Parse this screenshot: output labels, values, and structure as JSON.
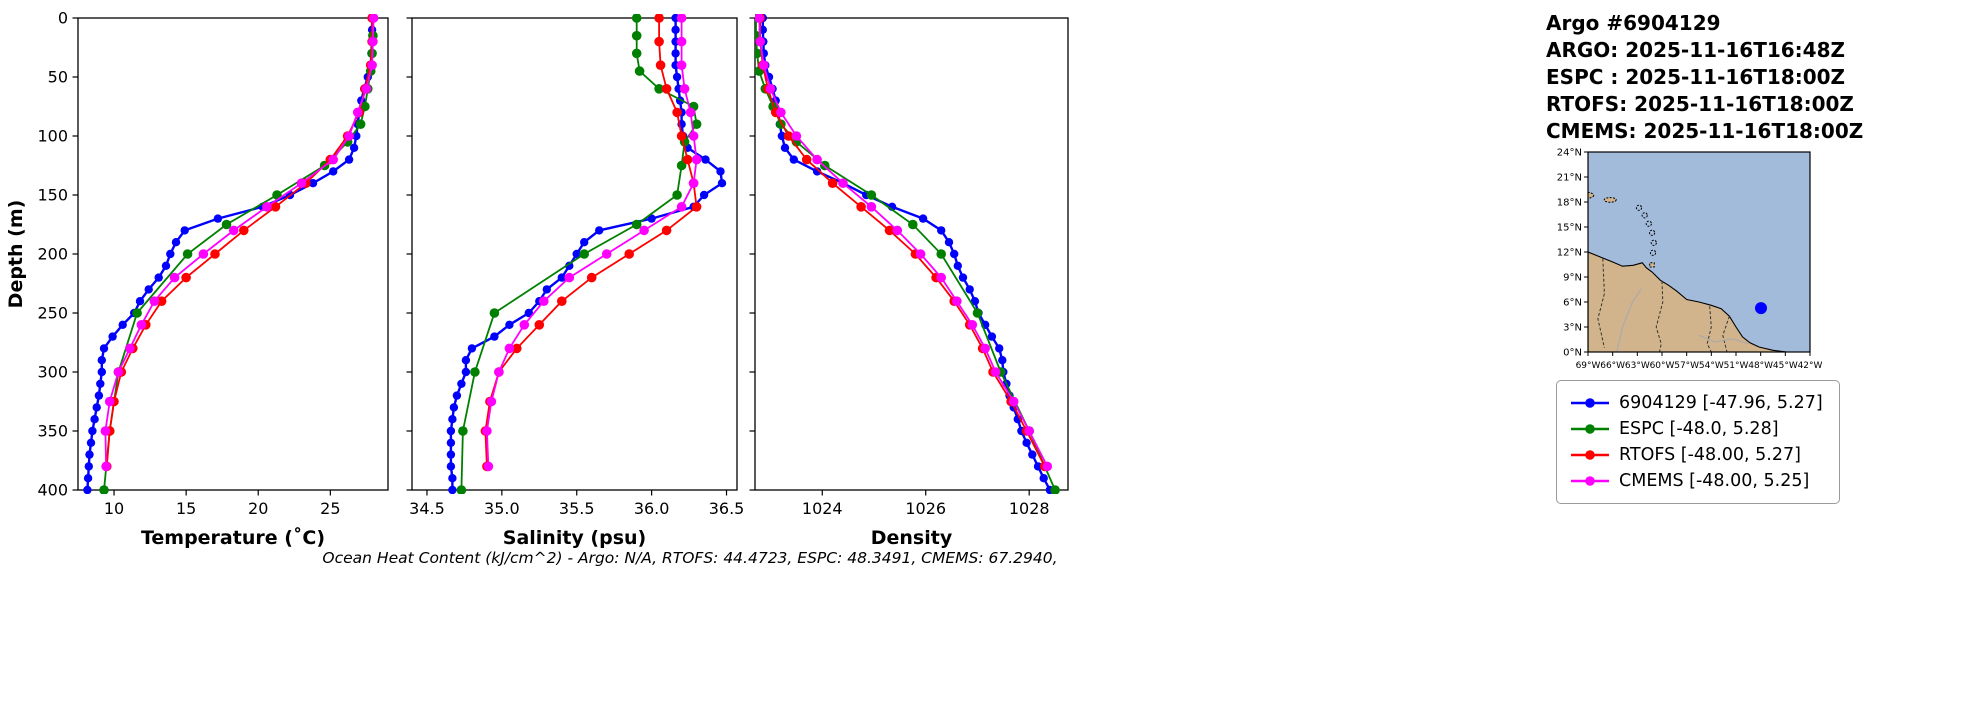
{
  "header": {
    "title": "Argo #6904129",
    "argo_line": "ARGO: 2025-11-16T16:48Z",
    "espc_line": "ESPC : 2025-11-16T18:00Z",
    "rtofs_line": "RTOFS: 2025-11-16T18:00Z",
    "cmems_line": "CMEMS: 2025-11-16T18:00Z"
  },
  "caption": "Ocean Heat Content (kJ/cm^2) - Argo: N/A,  RTOFS: 44.4723,  ESPC: 48.3491,  CMEMS: 67.2940,",
  "colors": {
    "argo": "#0000ff",
    "espc": "#008000",
    "rtofs": "#ff0000",
    "cmems": "#ff00ff"
  },
  "legend": {
    "items": [
      {
        "name": "argo",
        "label": "6904129 [-47.96, 5.27]",
        "color": "#0000ff"
      },
      {
        "name": "espc",
        "label": "ESPC [-48.0, 5.28]",
        "color": "#008000"
      },
      {
        "name": "rtofs",
        "label": "RTOFS [-48.00, 5.27]",
        "color": "#ff0000"
      },
      {
        "name": "cmems",
        "label": "CMEMS [-48.00, 5.25]",
        "color": "#ff00ff"
      }
    ]
  },
  "map": {
    "ocean_color": "#a2bbdb",
    "land_color": "#d2b48c",
    "extent": {
      "lon_min": -69,
      "lon_max": -42,
      "lat_min": 0,
      "lat_max": 24
    },
    "lat_tick_values": [
      24,
      21,
      18,
      15,
      12,
      9,
      6,
      3,
      0
    ],
    "lat_tick_labels": [
      "24°N",
      "21°N",
      "18°N",
      "15°N",
      "12°N",
      "9°N",
      "6°N",
      "3°N",
      "0°N"
    ],
    "lon_tick_values": [
      -69,
      -66,
      -63,
      -60,
      -57,
      -54,
      -51,
      -48,
      -45,
      -42
    ],
    "lon_tick_labels": [
      "69°W",
      "66°W",
      "63°W",
      "60°W",
      "57°W",
      "54°W",
      "51°W",
      "48°W",
      "45°W",
      "42°W"
    ],
    "marker": {
      "lon": -47.96,
      "lat": 5.27,
      "color": "#0000ff"
    }
  },
  "chart_data": [
    {
      "type": "line",
      "title": "",
      "xlabel": "Temperature (˚C)",
      "ylabel": "Depth (m)",
      "xlim": [
        7.5,
        29.0
      ],
      "ylim": [
        0,
        400
      ],
      "xticks": [
        10,
        15,
        20,
        25
      ],
      "xtick_labels": [
        "10",
        "15",
        "20",
        "25"
      ],
      "yticks": [
        0,
        50,
        100,
        150,
        200,
        250,
        300,
        350,
        400
      ],
      "ytick_labels": [
        "0",
        "50",
        "100",
        "150",
        "200",
        "250",
        "300",
        "350",
        "400"
      ],
      "show_ytick_labels": true,
      "series": [
        {
          "name": "6904129",
          "color": "#0000ff",
          "lw": 2.4,
          "ms": 4.2,
          "depth": [
            0,
            10,
            20,
            30,
            40,
            50,
            60,
            70,
            80,
            90,
            100,
            110,
            120,
            130,
            140,
            150,
            160,
            170,
            180,
            190,
            200,
            210,
            220,
            230,
            240,
            250,
            260,
            270,
            280,
            290,
            300,
            310,
            320,
            330,
            340,
            350,
            360,
            370,
            380,
            390,
            400
          ],
          "values": [
            27.9,
            27.9,
            27.88,
            27.85,
            27.8,
            27.6,
            27.35,
            27.15,
            27.0,
            26.9,
            26.8,
            26.65,
            26.3,
            25.2,
            23.8,
            22.2,
            20.3,
            17.2,
            14.9,
            14.3,
            13.9,
            13.6,
            13.1,
            12.4,
            11.8,
            11.4,
            10.6,
            9.9,
            9.3,
            9.15,
            9.15,
            9.05,
            8.95,
            8.8,
            8.65,
            8.5,
            8.4,
            8.3,
            8.25,
            8.2,
            8.15
          ]
        },
        {
          "name": "ESPC",
          "color": "#008000",
          "lw": 1.8,
          "ms": 4.8,
          "depth": [
            0,
            15,
            30,
            45,
            60,
            75,
            90,
            105,
            125,
            150,
            175,
            200,
            250,
            300,
            350,
            400
          ],
          "values": [
            27.95,
            27.95,
            27.9,
            27.8,
            27.6,
            27.4,
            27.1,
            26.2,
            24.6,
            21.3,
            17.8,
            15.1,
            11.6,
            10.3,
            9.7,
            9.3
          ]
        },
        {
          "name": "RTOFS",
          "color": "#ff0000",
          "lw": 1.8,
          "ms": 4.8,
          "depth": [
            0,
            20,
            40,
            60,
            80,
            100,
            120,
            140,
            160,
            180,
            200,
            220,
            240,
            260,
            280,
            300,
            325,
            350,
            380
          ],
          "values": [
            27.9,
            27.9,
            27.8,
            27.4,
            27.0,
            26.2,
            25.0,
            23.3,
            21.2,
            19.0,
            17.0,
            15.0,
            13.3,
            12.2,
            11.3,
            10.5,
            10.0,
            9.7,
            9.5
          ]
        },
        {
          "name": "CMEMS",
          "color": "#ff00ff",
          "lw": 1.8,
          "ms": 4.8,
          "depth": [
            0,
            20,
            40,
            60,
            80,
            100,
            120,
            140,
            160,
            180,
            200,
            220,
            240,
            260,
            280,
            300,
            325,
            350,
            380
          ],
          "values": [
            28.0,
            27.95,
            27.9,
            27.5,
            26.9,
            26.3,
            25.2,
            23.0,
            20.6,
            18.3,
            16.2,
            14.2,
            12.8,
            11.9,
            11.1,
            10.3,
            9.7,
            9.4,
            9.45
          ]
        }
      ]
    },
    {
      "type": "line",
      "title": "",
      "xlabel": "Salinity (psu)",
      "ylabel": "",
      "xlim": [
        34.4,
        36.57
      ],
      "ylim": [
        0,
        400
      ],
      "xticks": [
        34.5,
        35.0,
        35.5,
        36.0,
        36.5
      ],
      "xtick_labels": [
        "34.5",
        "35.0",
        "35.5",
        "36.0",
        "36.5"
      ],
      "yticks": [
        0,
        50,
        100,
        150,
        200,
        250,
        300,
        350,
        400
      ],
      "ytick_labels": [
        "0",
        "50",
        "100",
        "150",
        "200",
        "250",
        "300",
        "350",
        "400"
      ],
      "show_ytick_labels": false,
      "series": [
        {
          "name": "6904129",
          "color": "#0000ff",
          "lw": 2.4,
          "ms": 4.2,
          "depth": [
            0,
            10,
            20,
            30,
            40,
            50,
            60,
            70,
            80,
            90,
            100,
            110,
            120,
            130,
            140,
            150,
            160,
            170,
            180,
            190,
            200,
            210,
            220,
            230,
            240,
            250,
            260,
            270,
            280,
            290,
            300,
            310,
            320,
            330,
            340,
            350,
            360,
            370,
            380,
            390,
            400
          ],
          "values": [
            36.16,
            36.16,
            36.16,
            36.16,
            36.16,
            36.17,
            36.18,
            36.19,
            36.2,
            36.2,
            36.21,
            36.24,
            36.36,
            36.46,
            36.47,
            36.35,
            36.28,
            36.0,
            35.65,
            35.55,
            35.5,
            35.45,
            35.4,
            35.3,
            35.25,
            35.18,
            35.05,
            34.95,
            34.8,
            34.76,
            34.76,
            34.73,
            34.7,
            34.68,
            34.67,
            34.66,
            34.66,
            34.66,
            34.66,
            34.67,
            34.67
          ]
        },
        {
          "name": "ESPC",
          "color": "#008000",
          "lw": 1.8,
          "ms": 4.8,
          "depth": [
            0,
            15,
            30,
            45,
            60,
            75,
            90,
            105,
            125,
            150,
            175,
            200,
            250,
            300,
            350,
            400
          ],
          "values": [
            35.9,
            35.9,
            35.9,
            35.92,
            36.05,
            36.28,
            36.3,
            36.22,
            36.2,
            36.17,
            35.9,
            35.55,
            34.95,
            34.82,
            34.74,
            34.73
          ]
        },
        {
          "name": "RTOFS",
          "color": "#ff0000",
          "lw": 1.8,
          "ms": 4.8,
          "depth": [
            0,
            20,
            40,
            60,
            80,
            100,
            120,
            140,
            160,
            180,
            200,
            220,
            240,
            260,
            280,
            300,
            325,
            350,
            380
          ],
          "values": [
            36.05,
            36.05,
            36.06,
            36.1,
            36.17,
            36.2,
            36.24,
            36.28,
            36.3,
            36.1,
            35.85,
            35.6,
            35.4,
            35.25,
            35.1,
            34.98,
            34.92,
            34.89,
            34.9
          ]
        },
        {
          "name": "CMEMS",
          "color": "#ff00ff",
          "lw": 1.8,
          "ms": 4.8,
          "depth": [
            0,
            20,
            40,
            60,
            80,
            100,
            120,
            140,
            160,
            180,
            200,
            220,
            240,
            260,
            280,
            300,
            325,
            350,
            380
          ],
          "values": [
            36.2,
            36.2,
            36.2,
            36.22,
            36.26,
            36.28,
            36.3,
            36.28,
            36.2,
            35.95,
            35.7,
            35.45,
            35.28,
            35.15,
            35.05,
            34.98,
            34.93,
            34.9,
            34.91
          ]
        }
      ]
    },
    {
      "type": "line",
      "title": "",
      "xlabel": "Density",
      "ylabel": "",
      "xlim": [
        1022.7,
        1028.75
      ],
      "ylim": [
        0,
        400
      ],
      "xticks": [
        1024,
        1026,
        1028
      ],
      "xtick_labels": [
        "1024",
        "1026",
        "1028"
      ],
      "yticks": [
        0,
        50,
        100,
        150,
        200,
        250,
        300,
        350,
        400
      ],
      "ytick_labels": [
        "0",
        "50",
        "100",
        "150",
        "200",
        "250",
        "300",
        "350",
        "400"
      ],
      "show_ytick_labels": false,
      "series": [
        {
          "name": "6904129",
          "color": "#0000ff",
          "lw": 2.4,
          "ms": 4.2,
          "depth": [
            0,
            10,
            20,
            30,
            40,
            50,
            60,
            70,
            80,
            90,
            100,
            110,
            120,
            130,
            140,
            150,
            160,
            170,
            180,
            190,
            200,
            210,
            220,
            230,
            240,
            250,
            260,
            270,
            280,
            290,
            300,
            310,
            320,
            330,
            340,
            350,
            360,
            370,
            380,
            390,
            400
          ],
          "values": [
            1022.85,
            1022.85,
            1022.86,
            1022.87,
            1022.9,
            1022.97,
            1023.04,
            1023.1,
            1023.15,
            1023.18,
            1023.22,
            1023.28,
            1023.45,
            1023.9,
            1024.4,
            1024.85,
            1025.35,
            1025.95,
            1026.3,
            1026.45,
            1026.55,
            1026.62,
            1026.72,
            1026.85,
            1026.95,
            1027.02,
            1027.15,
            1027.28,
            1027.42,
            1027.48,
            1027.5,
            1027.56,
            1027.62,
            1027.7,
            1027.78,
            1027.85,
            1027.95,
            1028.06,
            1028.17,
            1028.28,
            1028.4
          ]
        },
        {
          "name": "ESPC",
          "color": "#008000",
          "lw": 1.8,
          "ms": 4.8,
          "depth": [
            0,
            15,
            30,
            45,
            60,
            75,
            90,
            105,
            125,
            150,
            175,
            200,
            250,
            300,
            350,
            400
          ],
          "values": [
            1022.72,
            1022.72,
            1022.74,
            1022.78,
            1022.9,
            1023.05,
            1023.2,
            1023.5,
            1024.05,
            1024.95,
            1025.75,
            1026.3,
            1027.0,
            1027.45,
            1028.0,
            1028.5
          ]
        },
        {
          "name": "RTOFS",
          "color": "#ff0000",
          "lw": 1.8,
          "ms": 4.8,
          "depth": [
            0,
            20,
            40,
            60,
            80,
            100,
            120,
            140,
            160,
            180,
            200,
            220,
            240,
            260,
            280,
            300,
            325,
            350,
            380
          ],
          "values": [
            1022.8,
            1022.8,
            1022.85,
            1022.95,
            1023.1,
            1023.35,
            1023.7,
            1024.2,
            1024.75,
            1025.3,
            1025.8,
            1026.2,
            1026.55,
            1026.85,
            1027.1,
            1027.3,
            1027.65,
            1027.95,
            1028.3
          ]
        },
        {
          "name": "CMEMS",
          "color": "#ff00ff",
          "lw": 1.8,
          "ms": 4.8,
          "depth": [
            0,
            20,
            40,
            60,
            80,
            100,
            120,
            140,
            160,
            180,
            200,
            220,
            240,
            260,
            280,
            300,
            325,
            350,
            380
          ],
          "values": [
            1022.78,
            1022.8,
            1022.87,
            1023.0,
            1023.2,
            1023.5,
            1023.9,
            1024.4,
            1024.95,
            1025.45,
            1025.9,
            1026.3,
            1026.6,
            1026.9,
            1027.15,
            1027.35,
            1027.7,
            1028.0,
            1028.35
          ]
        }
      ]
    }
  ]
}
